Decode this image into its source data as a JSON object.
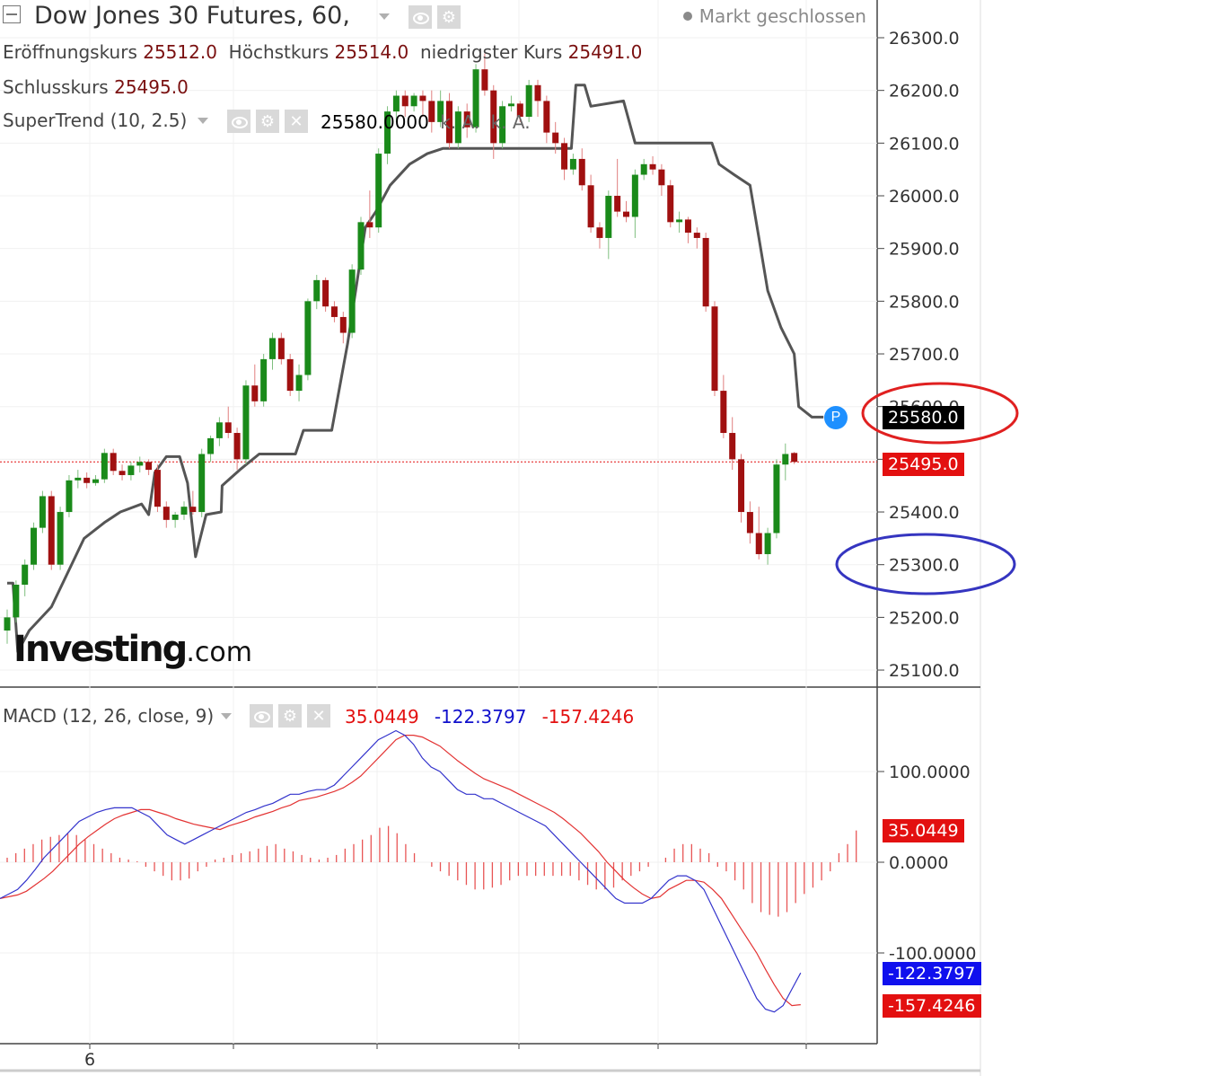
{
  "header": {
    "title": "Dow Jones 30 Futures, 60,",
    "market_status": "Markt geschlossen",
    "open_label": "Eröffnungskurs",
    "open_value": "25512.0",
    "high_label": "Höchstkurs",
    "high_value": "25514.0",
    "low_label": "niedrigster Kurs",
    "low_value": "25491.0",
    "close_label": "Schlusskurs",
    "close_value": "25495.0"
  },
  "indicators": {
    "supertrend": {
      "label": "SuperTrend (10, 2.5)",
      "value": "25580.0000",
      "na1": "k. A.",
      "na2": "k. A."
    },
    "macd": {
      "label": "MACD (12, 26, close, 9)",
      "hist": "35.0449",
      "macd": "-122.3797",
      "signal": "-157.4246"
    }
  },
  "tags": {
    "supertrend_tag": "25580.0",
    "last_price_tag": "25495.0",
    "macd_hist_tag": "35.0449",
    "macd_line_tag": "-122.3797",
    "macd_signal_tag": "-157.4246"
  },
  "logo": {
    "brand": "Investing",
    "suffix": ".com"
  },
  "colors": {
    "up": "#1a8a1a",
    "down": "#a01010",
    "supertrend": "#555555",
    "macd_line": "#3333cc",
    "signal_line": "#e33333",
    "histogram": "#e85555",
    "tag_red": "#e31010",
    "tag_blue": "#1010ee",
    "tag_black": "#000000",
    "annotation_red": "#e02020",
    "annotation_blue": "#3535c0"
  },
  "chart_data": [
    {
      "type": "candlestick",
      "title": "Dow Jones 30 Futures, 60,",
      "yticks": [
        25100,
        25200,
        25300,
        25400,
        25500,
        25600,
        25700,
        25800,
        25900,
        26000,
        26100,
        26200,
        26300
      ],
      "ylim": [
        25070,
        26335
      ],
      "xtick_labels": [
        "6"
      ],
      "last_price": 25495.0,
      "candles": [
        [
          25175,
          25215,
          25150,
          25200
        ],
        [
          25200,
          25270,
          25190,
          25262
        ],
        [
          25262,
          25310,
          25240,
          25300
        ],
        [
          25300,
          25380,
          25290,
          25370
        ],
        [
          25370,
          25440,
          25360,
          25430
        ],
        [
          25430,
          25440,
          25290,
          25300
        ],
        [
          25300,
          25410,
          25290,
          25400
        ],
        [
          25400,
          25470,
          25390,
          25460
        ],
        [
          25460,
          25480,
          25445,
          25465
        ],
        [
          25465,
          25475,
          25445,
          25455
        ],
        [
          25455,
          25470,
          25450,
          25462
        ],
        [
          25462,
          25520,
          25455,
          25512
        ],
        [
          25512,
          25520,
          25470,
          25478
        ],
        [
          25478,
          25490,
          25460,
          25470
        ],
        [
          25470,
          25495,
          25460,
          25488
        ],
        [
          25488,
          25505,
          25475,
          25495
        ],
        [
          25495,
          25500,
          25470,
          25480
        ],
        [
          25480,
          25490,
          25400,
          25410
        ],
        [
          25410,
          25420,
          25370,
          25385
        ],
        [
          25385,
          25400,
          25370,
          25395
        ],
        [
          25395,
          25420,
          25385,
          25410
        ],
        [
          25410,
          25440,
          25395,
          25400
        ],
        [
          25400,
          25520,
          25390,
          25510
        ],
        [
          25510,
          25545,
          25495,
          25540
        ],
        [
          25540,
          25580,
          25525,
          25570
        ],
        [
          25570,
          25600,
          25540,
          25550
        ],
        [
          25550,
          25560,
          25480,
          25500
        ],
        [
          25500,
          25650,
          25490,
          25640
        ],
        [
          25640,
          25680,
          25600,
          25610
        ],
        [
          25610,
          25700,
          25600,
          25690
        ],
        [
          25690,
          25740,
          25670,
          25730
        ],
        [
          25730,
          25740,
          25680,
          25690
        ],
        [
          25690,
          25700,
          25620,
          25630
        ],
        [
          25630,
          25680,
          25610,
          25660
        ],
        [
          25660,
          25805,
          25650,
          25800
        ],
        [
          25800,
          25850,
          25785,
          25840
        ],
        [
          25840,
          25845,
          25780,
          25790
        ],
        [
          25790,
          25800,
          25760,
          25770
        ],
        [
          25770,
          25780,
          25720,
          25740
        ],
        [
          25740,
          25870,
          25730,
          25860
        ],
        [
          25860,
          25960,
          25850,
          25950
        ],
        [
          25950,
          26010,
          25920,
          25940
        ],
        [
          25940,
          26090,
          25930,
          26080
        ],
        [
          26080,
          26170,
          26060,
          26160
        ],
        [
          26160,
          26200,
          26140,
          26190
        ],
        [
          26190,
          26200,
          26150,
          26170
        ],
        [
          26170,
          26195,
          26160,
          26190
        ],
        [
          26190,
          26200,
          26150,
          26180
        ],
        [
          26180,
          26200,
          26120,
          26140
        ],
        [
          26140,
          26200,
          26130,
          26180
        ],
        [
          26180,
          26195,
          26090,
          26100
        ],
        [
          26100,
          26170,
          26090,
          26160
        ],
        [
          26160,
          26175,
          26110,
          26130
        ],
        [
          26130,
          26250,
          26120,
          26240
        ],
        [
          26240,
          26270,
          26190,
          26200
        ],
        [
          26200,
          26210,
          26070,
          26100
        ],
        [
          26100,
          26180,
          26090,
          26170
        ],
        [
          26170,
          26190,
          26160,
          26175
        ],
        [
          26175,
          26180,
          26140,
          26150
        ],
        [
          26150,
          26220,
          26140,
          26210
        ],
        [
          26210,
          26220,
          26150,
          26180
        ],
        [
          26180,
          26190,
          26100,
          26120
        ],
        [
          26120,
          26140,
          26080,
          26100
        ],
        [
          26100,
          26110,
          26030,
          26050
        ],
        [
          26050,
          26080,
          26040,
          26070
        ],
        [
          26070,
          26090,
          26010,
          26020
        ],
        [
          26020,
          26040,
          25930,
          25940
        ],
        [
          25940,
          25950,
          25900,
          25920
        ],
        [
          25920,
          26010,
          25880,
          26000
        ],
        [
          26000,
          26070,
          25960,
          25970
        ],
        [
          25970,
          25990,
          25950,
          25960
        ],
        [
          25960,
          26050,
          25920,
          26040
        ],
        [
          26040,
          26070,
          26030,
          26060
        ],
        [
          26060,
          26075,
          26040,
          26050
        ],
        [
          26050,
          26060,
          26000,
          26020
        ],
        [
          26020,
          26030,
          25940,
          25950
        ],
        [
          25950,
          25970,
          25930,
          25955
        ],
        [
          25955,
          25960,
          25910,
          25930
        ],
        [
          25930,
          25940,
          25900,
          25920
        ],
        [
          25920,
          25930,
          25780,
          25790
        ],
        [
          25790,
          25800,
          25620,
          25630
        ],
        [
          25630,
          25660,
          25540,
          25550
        ],
        [
          25550,
          25580,
          25480,
          25500
        ],
        [
          25500,
          25510,
          25380,
          25400
        ],
        [
          25400,
          25420,
          25340,
          25360
        ],
        [
          25360,
          25410,
          25310,
          25320
        ],
        [
          25320,
          25370,
          25300,
          25360
        ],
        [
          25360,
          25500,
          25350,
          25490
        ],
        [
          25490,
          25530,
          25460,
          25510
        ],
        [
          25512,
          25514,
          25491,
          25495
        ]
      ],
      "supertrend": [
        [
          0,
          25265
        ],
        [
          0.65,
          25265
        ],
        [
          1.2,
          25135
        ],
        [
          2.5,
          25175
        ],
        [
          5,
          25220
        ],
        [
          8.7,
          25350
        ],
        [
          11,
          25380
        ],
        [
          12.8,
          25400
        ],
        [
          15.2,
          25415
        ],
        [
          16,
          25395
        ],
        [
          16.7,
          25475
        ],
        [
          18,
          25505
        ],
        [
          19.5,
          25505
        ],
        [
          20.4,
          25455
        ],
        [
          21.3,
          25315
        ],
        [
          22.5,
          25395
        ],
        [
          24.2,
          25400
        ],
        [
          24.3,
          25450
        ],
        [
          26.3,
          25480
        ],
        [
          28.5,
          25510
        ],
        [
          32.6,
          25510
        ],
        [
          33.5,
          25555
        ],
        [
          36.7,
          25555
        ],
        [
          38.5,
          25720
        ],
        [
          40.5,
          25940
        ],
        [
          41.7,
          25970
        ],
        [
          43.3,
          26020
        ],
        [
          45.5,
          26060
        ],
        [
          47.5,
          26080
        ],
        [
          49.3,
          26090
        ],
        [
          63.8,
          26090
        ],
        [
          64.3,
          26210
        ],
        [
          65.3,
          26210
        ],
        [
          66,
          26170
        ],
        [
          69.7,
          26180
        ],
        [
          71,
          26100
        ],
        [
          79.7,
          26100
        ],
        [
          80.5,
          26060
        ],
        [
          82.2,
          26040
        ],
        [
          84,
          26020
        ],
        [
          85,
          25920
        ],
        [
          86,
          25820
        ],
        [
          87.5,
          25750
        ],
        [
          89,
          25700
        ],
        [
          89.5,
          25600
        ],
        [
          91,
          25580
        ],
        [
          92.3,
          25580
        ]
      ]
    },
    {
      "type": "line",
      "title": "MACD (12, 26, close, 9)",
      "yticks": [
        -100,
        0,
        100
      ],
      "series": [
        {
          "values": [
            -40,
            -35,
            -30,
            -20,
            -8,
            5,
            15,
            25,
            35,
            45,
            50,
            55,
            58,
            60,
            60,
            60,
            55,
            50,
            40,
            30,
            25,
            20,
            25,
            30,
            35,
            40,
            45,
            50,
            55,
            58,
            62,
            65,
            70,
            75,
            75,
            78,
            80,
            80,
            85,
            95,
            105,
            115,
            125,
            135,
            140,
            145,
            140,
            130,
            115,
            105,
            100,
            90,
            80,
            75,
            75,
            70,
            70,
            65,
            60,
            55,
            50,
            45,
            40,
            30,
            20,
            10,
            0,
            -10,
            -20,
            -30,
            -40,
            -45,
            -45,
            -45,
            -40,
            -30,
            -20,
            -15,
            -15,
            -20,
            -30,
            -50,
            -70,
            -90,
            -110,
            -130,
            -150,
            -162,
            -165,
            -158,
            -140,
            -122
          ]
        },
        {
          "values": [
            -40,
            -38,
            -36,
            -32,
            -25,
            -18,
            -10,
            0,
            10,
            20,
            28,
            35,
            42,
            48,
            52,
            55,
            58,
            58,
            55,
            52,
            48,
            45,
            42,
            40,
            38,
            36,
            40,
            43,
            46,
            50,
            53,
            56,
            60,
            63,
            68,
            70,
            72,
            75,
            78,
            82,
            88,
            95,
            105,
            115,
            125,
            135,
            140,
            140,
            138,
            133,
            128,
            120,
            112,
            105,
            98,
            92,
            88,
            84,
            80,
            75,
            70,
            65,
            60,
            55,
            48,
            40,
            32,
            22,
            12,
            0,
            -10,
            -20,
            -28,
            -35,
            -40,
            -38,
            -30,
            -25,
            -20,
            -20,
            -22,
            -30,
            -40,
            -55,
            -70,
            -85,
            -100,
            -118,
            -135,
            -150,
            -158,
            -157
          ]
        }
      ]
    },
    {
      "type": "bar",
      "values": [
        5,
        10,
        15,
        20,
        25,
        28,
        30,
        32,
        30,
        25,
        20,
        15,
        10,
        5,
        3,
        1,
        -5,
        -10,
        -15,
        -20,
        -20,
        -18,
        -10,
        -5,
        3,
        5,
        8,
        10,
        12,
        15,
        18,
        20,
        15,
        12,
        8,
        5,
        3,
        5,
        8,
        15,
        20,
        25,
        30,
        38,
        40,
        32,
        20,
        10,
        0,
        -5,
        -10,
        -15,
        -20,
        -25,
        -30,
        -30,
        -28,
        -25,
        -20,
        -15,
        -15,
        -15,
        -15,
        -15,
        -15,
        -15,
        -20,
        -25,
        -30,
        -30,
        -28,
        -20,
        -15,
        -10,
        -5,
        0,
        5,
        15,
        20,
        20,
        15,
        10,
        -5,
        -10,
        -20,
        -30,
        -45,
        -55,
        -58,
        -60,
        -55,
        -45,
        -35,
        -28,
        -20,
        -10,
        10,
        20,
        35
      ]
    }
  ]
}
